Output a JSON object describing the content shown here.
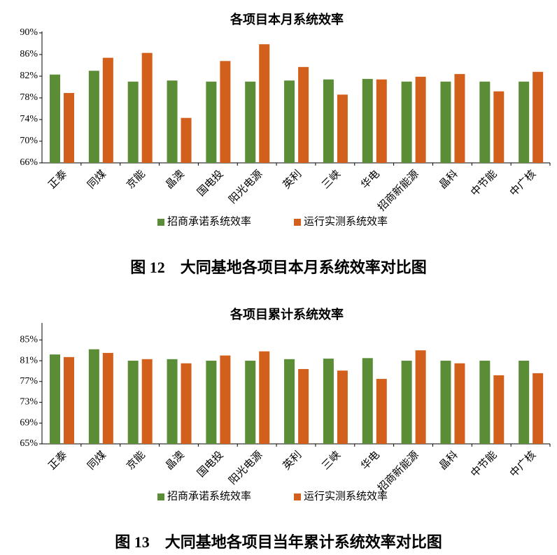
{
  "chart_data": [
    {
      "type": "bar",
      "title": "各项目本月系统效率",
      "caption": "图 12　大同基地各项目本月系统效率对比图",
      "categories": [
        "正泰",
        "同煤",
        "京能",
        "晶澳",
        "国电投",
        "阳光电源",
        "英利",
        "三峡",
        "华电",
        "招商新能源",
        "晶科",
        "中节能",
        "中广核"
      ],
      "series": [
        {
          "name": "招商承诺系统效率",
          "color": "#5b8c36",
          "values": [
            82.3,
            83.0,
            81.0,
            81.2,
            81.0,
            81.0,
            81.2,
            81.4,
            81.5,
            81.0,
            81.0,
            81.0,
            81.0
          ]
        },
        {
          "name": "运行实测系统效率",
          "color": "#d2601c",
          "values": [
            78.9,
            85.4,
            86.3,
            74.3,
            84.8,
            87.9,
            83.7,
            78.6,
            81.4,
            81.9,
            82.4,
            79.2,
            82.8
          ]
        }
      ],
      "ylim": [
        66,
        90
      ],
      "yticks": [
        {
          "value": 66,
          "label": "66%"
        },
        {
          "value": 70,
          "label": "70%"
        },
        {
          "value": 74,
          "label": "74%"
        },
        {
          "value": 78,
          "label": "78%"
        },
        {
          "value": 82,
          "label": "82%"
        },
        {
          "value": 86,
          "label": "86%"
        },
        {
          "value": 90,
          "label": "90%"
        }
      ]
    },
    {
      "type": "bar",
      "title": "各项目累计系统效率",
      "caption": "图 13　大同基地各项目当年累计系统效率对比图",
      "categories": [
        "正泰",
        "同煤",
        "京能",
        "晶澳",
        "国电投",
        "阳光电源",
        "英利",
        "三峡",
        "华电",
        "招商新能源",
        "晶科",
        "中节能",
        "中广核"
      ],
      "series": [
        {
          "name": "招商承诺系统效率",
          "color": "#5b8c36",
          "values": [
            82.2,
            83.2,
            81.0,
            81.3,
            81.0,
            81.0,
            81.3,
            81.4,
            81.5,
            81.0,
            81.0,
            81.0,
            81.0
          ]
        },
        {
          "name": "运行实测系统效率",
          "color": "#d2601c",
          "values": [
            81.7,
            82.5,
            81.3,
            80.5,
            82.0,
            82.8,
            79.4,
            79.1,
            77.5,
            83.0,
            80.5,
            78.2,
            78.6
          ]
        }
      ],
      "ylim": [
        65,
        88
      ],
      "yticks": [
        {
          "value": 65,
          "label": "65%"
        },
        {
          "value": 69,
          "label": "69%"
        },
        {
          "value": 73,
          "label": "73%"
        },
        {
          "value": 77,
          "label": "77%"
        },
        {
          "value": 81,
          "label": "81%"
        },
        {
          "value": 85,
          "label": "85%"
        }
      ]
    }
  ]
}
